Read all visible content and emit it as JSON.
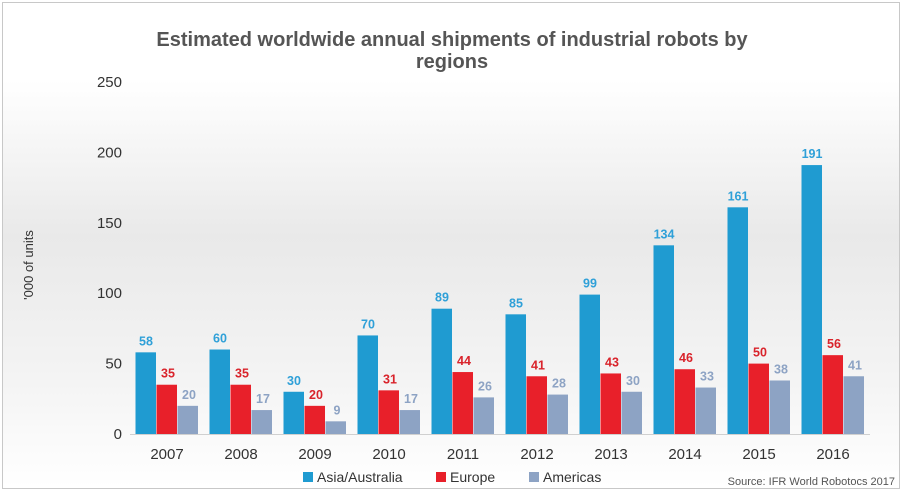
{
  "chart_data": {
    "type": "bar",
    "title_lines": [
      "Estimated worldwide annual shipments of industrial robots by",
      "regions"
    ],
    "ylabel": "'000 of units",
    "xlabel": "",
    "categories": [
      "2007",
      "2008",
      "2009",
      "2010",
      "2011",
      "2012",
      "2013",
      "2014",
      "2015",
      "2016"
    ],
    "ylim": [
      0,
      250
    ],
    "yticks": [
      0,
      50,
      100,
      150,
      200,
      250
    ],
    "series": [
      {
        "name": "Asia/Australia",
        "color": "#1f9bd1",
        "label_color": "#2fa0d8",
        "values": [
          58,
          60,
          30,
          70,
          89,
          85,
          99,
          134,
          161,
          191
        ]
      },
      {
        "name": "Europe",
        "color": "#e8202a",
        "label_color": "#d9232b",
        "values": [
          35,
          35,
          20,
          31,
          44,
          41,
          43,
          46,
          50,
          56
        ]
      },
      {
        "name": "Americas",
        "color": "#8da3c4",
        "label_color": "#8da3c4",
        "values": [
          20,
          17,
          9,
          17,
          26,
          28,
          30,
          33,
          38,
          41
        ]
      }
    ],
    "grid": false,
    "legend_position": "bottom",
    "source": "Source: IFR World Robotocs 2017"
  }
}
